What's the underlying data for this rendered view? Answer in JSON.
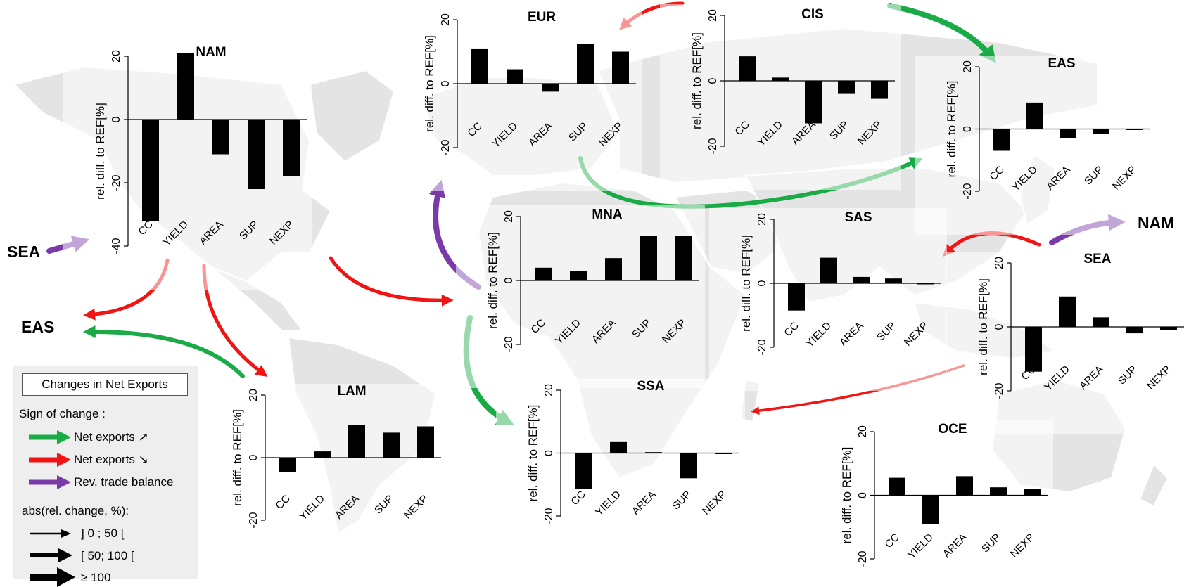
{
  "colors": {
    "increase": "#1aab46",
    "decrease": "#f01414",
    "reversal": "#7a3aa8",
    "bar": "#000000",
    "map": "#e2e2e2"
  },
  "chart_data": [
    {
      "type": "bar",
      "title": "NAM",
      "ylabel": "rel. diff. to REF[%]",
      "categories": [
        "CC",
        "YIELD",
        "AREA",
        "SUP",
        "NEXP"
      ],
      "values": [
        -32,
        21,
        -11,
        -22,
        -18
      ],
      "ylim": [
        -40,
        20
      ],
      "yticks": [
        -40,
        -20,
        0,
        20
      ]
    },
    {
      "type": "bar",
      "title": "EUR",
      "ylabel": "rel. diff. to REF[%]",
      "categories": [
        "CC",
        "YIELD",
        "AREA",
        "SUP",
        "NEXP"
      ],
      "values": [
        11,
        4.5,
        -2.5,
        12.5,
        10
      ],
      "ylim": [
        -20,
        20
      ],
      "yticks": [
        -20,
        0,
        20
      ]
    },
    {
      "type": "bar",
      "title": "CIS",
      "ylabel": "rel. diff. to REF[%]",
      "categories": [
        "CC",
        "YIELD",
        "AREA",
        "SUP",
        "NEXP"
      ],
      "values": [
        7.5,
        1,
        -13,
        -4,
        -5.5
      ],
      "ylim": [
        -20,
        20
      ],
      "yticks": [
        -20,
        0,
        20
      ]
    },
    {
      "type": "bar",
      "title": "EAS",
      "ylabel": "rel. diff. to REF[%]",
      "categories": [
        "CC",
        "YIELD",
        "AREA",
        "SUP",
        "NEXP"
      ],
      "values": [
        -7,
        8.5,
        -3,
        -1.5,
        -0.3
      ],
      "ylim": [
        -20,
        20
      ],
      "yticks": [
        -20,
        0,
        20
      ]
    },
    {
      "type": "bar",
      "title": "MNA",
      "ylabel": "rel. diff. to REF[%]",
      "categories": [
        "CC",
        "YIELD",
        "AREA",
        "SUP",
        "NEXP"
      ],
      "values": [
        4,
        3,
        7,
        14,
        14
      ],
      "ylim": [
        -20,
        20
      ],
      "yticks": [
        -20,
        0,
        20
      ]
    },
    {
      "type": "bar",
      "title": "SAS",
      "ylabel": "rel. diff. to REF[%]",
      "categories": [
        "CC",
        "YIELD",
        "AREA",
        "SUP",
        "NEXP"
      ],
      "values": [
        -8.5,
        8,
        2,
        1.5,
        -0.3
      ],
      "ylim": [
        -20,
        20
      ],
      "yticks": [
        -20,
        0,
        20
      ]
    },
    {
      "type": "bar",
      "title": "SEA",
      "ylabel": "rel. diff. to REF[%]",
      "categories": [
        "CC",
        "YIELD",
        "AREA",
        "SUP",
        "NEXP"
      ],
      "values": [
        -14,
        9.5,
        3,
        -2,
        -1
      ],
      "ylim": [
        -20,
        20
      ],
      "yticks": [
        -20,
        0,
        20
      ]
    },
    {
      "type": "bar",
      "title": "LAM",
      "ylabel": "rel. diff. to REF[%]",
      "categories": [
        "CC",
        "YIELD",
        "AREA",
        "SUP",
        "NEXP"
      ],
      "values": [
        -4.5,
        2,
        10.5,
        8,
        10
      ],
      "ylim": [
        -20,
        20
      ],
      "yticks": [
        -20,
        0,
        20
      ]
    },
    {
      "type": "bar",
      "title": "SSA",
      "ylabel": "rel. diff. to REF[%]",
      "categories": [
        "CC",
        "YIELD",
        "AREA",
        "SUP",
        "NEXP"
      ],
      "values": [
        -11.5,
        3.5,
        0.3,
        -8,
        -0.3
      ],
      "ylim": [
        -20,
        20
      ],
      "yticks": [
        -20,
        0,
        20
      ]
    },
    {
      "type": "bar",
      "title": "OCE",
      "ylabel": "rel. diff. to REF[%]",
      "categories": [
        "CC",
        "YIELD",
        "AREA",
        "SUP",
        "NEXP"
      ],
      "values": [
        5.5,
        -9,
        6,
        2.5,
        2
      ],
      "ylim": [
        -20,
        20
      ],
      "yticks": [
        -20,
        0,
        20
      ]
    }
  ],
  "region_labels": {
    "sea_left": "SEA",
    "eas_left": "EAS",
    "nam_right": "NAM"
  },
  "legend": {
    "title": "Changes in Net Exports",
    "sign_header": "Sign of change :",
    "increase_label": "Net exports ↗",
    "decrease_label": "Net exports ↘",
    "reversal_label": "Rev. trade balance",
    "magnitude_header": "abs(rel. change, %):",
    "magnitude_1": "] 0 ; 50 [",
    "magnitude_2": "[ 50; 100 [",
    "magnitude_3": "≥ 100"
  },
  "flows": [
    {
      "from": "EUR",
      "to": "CIS",
      "sign": "decrease"
    },
    {
      "from": "CIS",
      "to": "EAS",
      "sign": "increase"
    },
    {
      "from": "EUR",
      "to": "EAS",
      "sign": "increase"
    },
    {
      "from": "SEA",
      "to": "NAM",
      "sign": "reversal"
    },
    {
      "from": "NAM",
      "to": "EAS",
      "sign": "decrease"
    },
    {
      "from": "NAM",
      "to": "LAM",
      "sign": "decrease"
    },
    {
      "from": "LAM",
      "to": "EAS",
      "sign": "increase"
    },
    {
      "from": "NAM",
      "to": "MNA",
      "sign": "decrease"
    },
    {
      "from": "MNA",
      "to": "EUR",
      "sign": "reversal"
    },
    {
      "from": "MNA",
      "to": "SSA",
      "sign": "increase"
    },
    {
      "from": "SEA",
      "to": "SAS",
      "sign": "decrease"
    },
    {
      "from": "SEA",
      "to": "SSA",
      "sign": "decrease"
    }
  ]
}
